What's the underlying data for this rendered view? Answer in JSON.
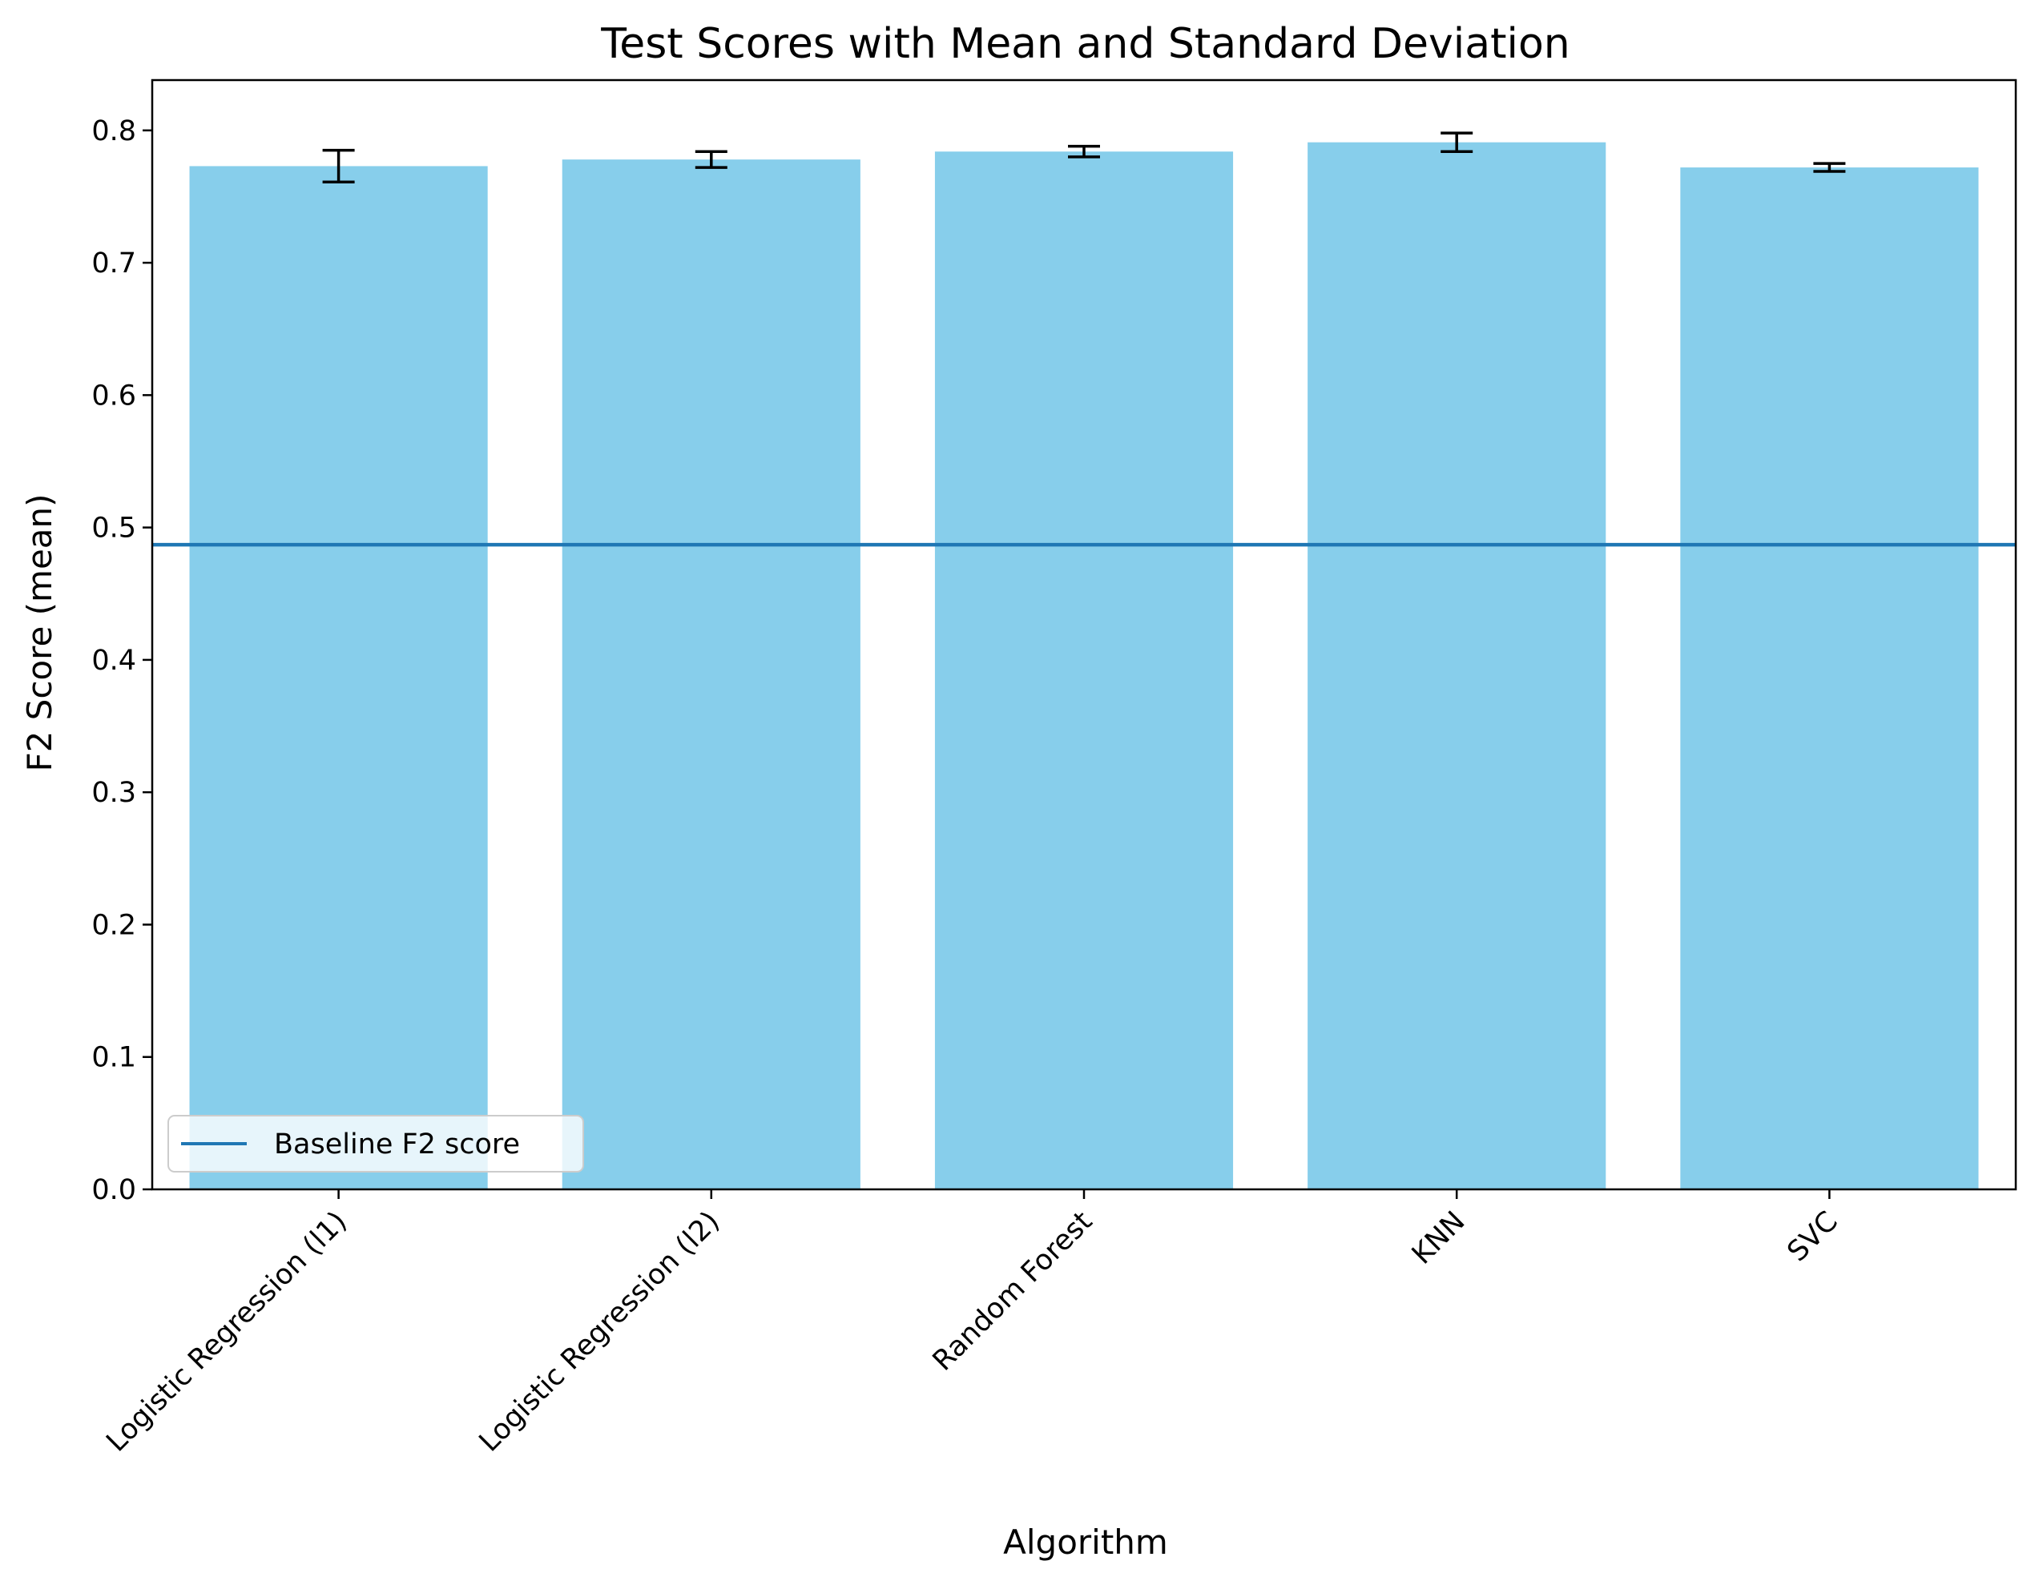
{
  "chart_data": {
    "type": "bar",
    "title": "Test Scores with Mean and Standard Deviation",
    "xlabel": "Algorithm",
    "ylabel": "F2 Score (mean)",
    "categories": [
      "Logistic Regression (l1)",
      "Logistic Regression (l2)",
      "Random Forest",
      "KNN",
      "SVC"
    ],
    "values": [
      0.773,
      0.778,
      0.784,
      0.791,
      0.772
    ],
    "std": [
      0.012,
      0.006,
      0.004,
      0.007,
      0.003
    ],
    "ylim": [
      0,
      0.838
    ],
    "yticks": [
      "0.0",
      "0.1",
      "0.2",
      "0.3",
      "0.4",
      "0.5",
      "0.6",
      "0.7",
      "0.8"
    ],
    "baseline": {
      "value": 0.487,
      "label": "Baseline F2 score",
      "color": "#1f77b4"
    },
    "bar_color": "#87ceeb",
    "errorbar_color": "#000000",
    "legend_position": "lower-left",
    "grid": false
  }
}
